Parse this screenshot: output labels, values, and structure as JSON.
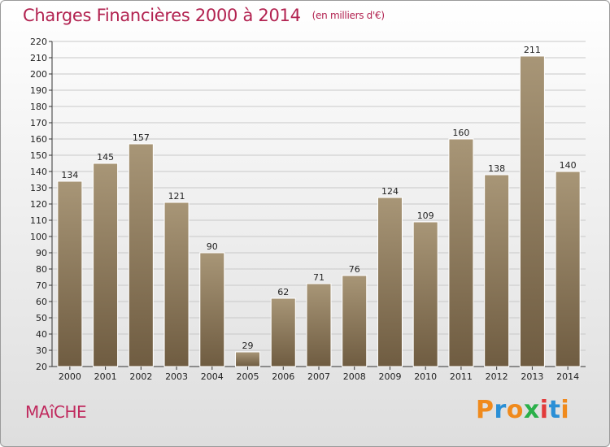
{
  "title": "Charges Financières 2000 à 2014",
  "subtitle": "(en milliers d'€)",
  "footer": {
    "city": "MAîCHE",
    "brand": "Proxiti"
  },
  "colors": {
    "title": "#b22250",
    "bar_top": "#a89677",
    "bar_bottom": "#6f5c41",
    "grid": "#c8c8c8"
  },
  "chart_data": {
    "type": "bar",
    "title": "Charges Financières 2000 à 2014",
    "subtitle": "(en milliers d'€)",
    "categories": [
      "2000",
      "2001",
      "2002",
      "2003",
      "2004",
      "2005",
      "2006",
      "2007",
      "2008",
      "2009",
      "2010",
      "2011",
      "2012",
      "2013",
      "2014"
    ],
    "values": [
      134,
      145,
      157,
      121,
      90,
      29,
      62,
      71,
      76,
      124,
      109,
      160,
      138,
      211,
      140
    ],
    "ylim": [
      20,
      220
    ],
    "ytick_step": 10,
    "grid": true,
    "data_labels": true
  }
}
